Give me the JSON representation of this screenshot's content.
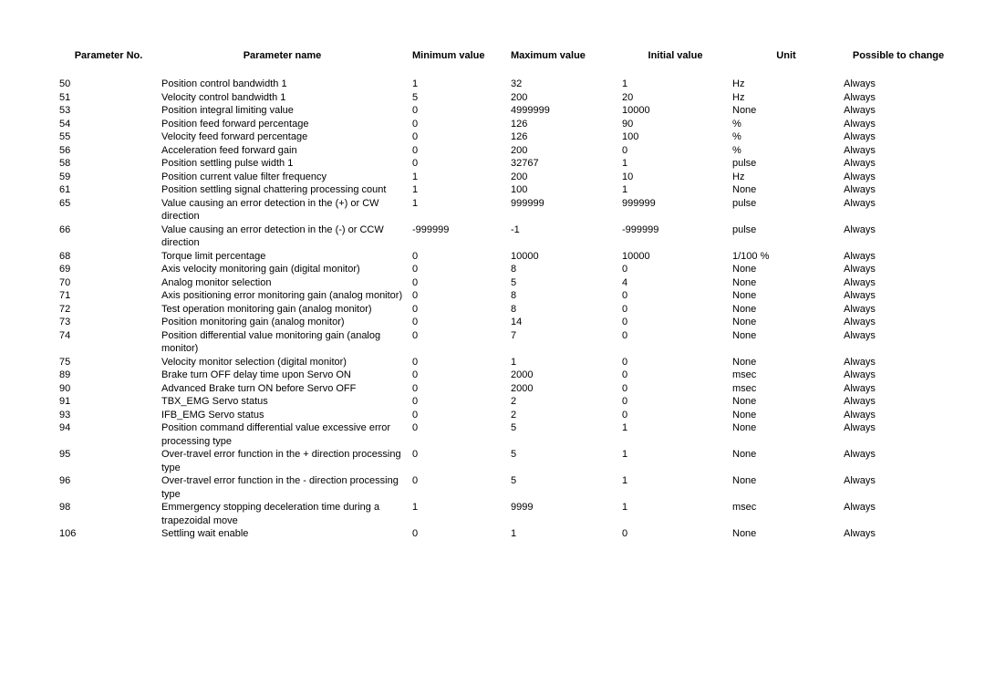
{
  "table": {
    "headers": {
      "param_no": "Parameter No.",
      "param_name": "Parameter name",
      "min": "Minimum value",
      "max": "Maximum value",
      "init": "Initial value",
      "unit": "Unit",
      "change": "Possible to change"
    },
    "rows": [
      {
        "no": "50",
        "name": "Position control bandwidth 1",
        "min": "1",
        "max": "32",
        "init": "1",
        "unit": "Hz",
        "change": "Always"
      },
      {
        "no": "51",
        "name": "Velocity control bandwidth 1",
        "min": "5",
        "max": "200",
        "init": "20",
        "unit": "Hz",
        "change": "Always"
      },
      {
        "no": "53",
        "name": "Position integral limiting value",
        "min": "0",
        "max": "4999999",
        "init": "10000",
        "unit": "None",
        "change": "Always"
      },
      {
        "no": "54",
        "name": "Position feed forward percentage",
        "min": "0",
        "max": "126",
        "init": "90",
        "unit": "%",
        "change": "Always"
      },
      {
        "no": "55",
        "name": "Velocity feed forward percentage",
        "min": "0",
        "max": "126",
        "init": "100",
        "unit": "%",
        "change": "Always"
      },
      {
        "no": "56",
        "name": "Acceleration feed forward gain",
        "min": "0",
        "max": "200",
        "init": "0",
        "unit": "%",
        "change": "Always"
      },
      {
        "no": "58",
        "name": "Position settling pulse width 1",
        "min": "0",
        "max": "32767",
        "init": "1",
        "unit": "pulse",
        "change": "Always"
      },
      {
        "no": "59",
        "name": "Position current value filter frequency",
        "min": "1",
        "max": "200",
        "init": "10",
        "unit": "Hz",
        "change": "Always"
      },
      {
        "no": "61",
        "name": "Position settling signal chattering processing count",
        "min": "1",
        "max": "100",
        "init": "1",
        "unit": "None",
        "change": "Always"
      },
      {
        "no": "65",
        "name": "Value causing an error detection in the (+) or CW direction",
        "min": "1",
        "max": "999999",
        "init": "999999",
        "unit": "pulse",
        "change": "Always"
      },
      {
        "no": "66",
        "name": "Value causing an error detection in the (-) or CCW direction",
        "min": "-999999",
        "max": "-1",
        "init": "-999999",
        "unit": "pulse",
        "change": "Always"
      },
      {
        "no": "68",
        "name": "Torque limit percentage",
        "min": "0",
        "max": "10000",
        "init": "10000",
        "unit": "1/100 %",
        "change": "Always"
      },
      {
        "no": "69",
        "name": "Axis velocity monitoring gain (digital monitor)",
        "min": "0",
        "max": "8",
        "init": "0",
        "unit": "None",
        "change": "Always"
      },
      {
        "no": "70",
        "name": "Analog monitor selection",
        "min": "0",
        "max": "5",
        "init": "4",
        "unit": "None",
        "change": "Always"
      },
      {
        "no": "71",
        "name": "Axis positioning error monitoring gain (analog monitor)",
        "min": "0",
        "max": "8",
        "init": "0",
        "unit": "None",
        "change": "Always"
      },
      {
        "no": "72",
        "name": "Test operation monitoring gain (analog monitor)",
        "min": "0",
        "max": "8",
        "init": "0",
        "unit": "None",
        "change": "Always"
      },
      {
        "no": "73",
        "name": "Position monitoring gain (analog monitor)",
        "min": "0",
        "max": "14",
        "init": "0",
        "unit": "None",
        "change": "Always"
      },
      {
        "no": "74",
        "name": "Position differential value monitoring gain (analog monitor)",
        "min": "0",
        "max": "7",
        "init": "0",
        "unit": "None",
        "change": "Always"
      },
      {
        "no": "75",
        "name": "Velocity monitor selection (digital monitor)",
        "min": "0",
        "max": "1",
        "init": "0",
        "unit": "None",
        "change": "Always"
      },
      {
        "no": "89",
        "name": "Brake turn OFF delay time upon Servo ON",
        "min": "0",
        "max": "2000",
        "init": "0",
        "unit": "msec",
        "change": "Always"
      },
      {
        "no": "90",
        "name": "Advanced Brake turn ON before Servo OFF",
        "min": "0",
        "max": "2000",
        "init": "0",
        "unit": "msec",
        "change": "Always"
      },
      {
        "no": "91",
        "name": "TBX_EMG Servo status",
        "min": "0",
        "max": "2",
        "init": "0",
        "unit": "None",
        "change": "Always"
      },
      {
        "no": "93",
        "name": "IFB_EMG Servo status",
        "min": "0",
        "max": "2",
        "init": "0",
        "unit": "None",
        "change": "Always"
      },
      {
        "no": "94",
        "name": "Position command differential value excessive error processing type",
        "min": "0",
        "max": "5",
        "init": "1",
        "unit": "None",
        "change": "Always"
      },
      {
        "no": "95",
        "name": "Over-travel error function in the + direction processing type",
        "min": "0",
        "max": "5",
        "init": "1",
        "unit": "None",
        "change": "Always"
      },
      {
        "no": "96",
        "name": "Over-travel error function in the - direction processing type",
        "min": "0",
        "max": "5",
        "init": "1",
        "unit": "None",
        "change": "Always"
      },
      {
        "no": "98",
        "name": "Emmergency stopping deceleration time during a trapezoidal move",
        "min": "1",
        "max": "9999",
        "init": "1",
        "unit": "msec",
        "change": "Always"
      },
      {
        "no": "106",
        "name": "Settling wait enable",
        "min": "0",
        "max": "1",
        "init": "0",
        "unit": "None",
        "change": "Always"
      }
    ]
  }
}
